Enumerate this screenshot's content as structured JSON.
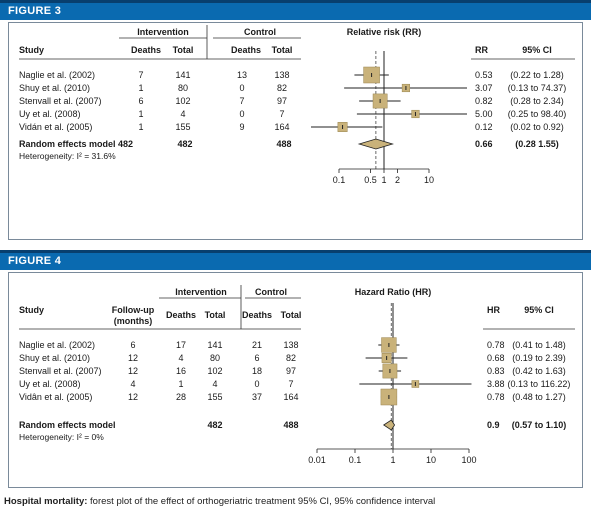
{
  "caption": {
    "bold": "Hospital mortality:",
    "rest": " forest plot of the effect of orthogeriatric treatment 95% CI, 95% confidence interval"
  },
  "chart_data": [
    {
      "type": "forest",
      "figure_label": "FIGURE 3",
      "effect_label": "Relative risk (RR)",
      "group_headers": [
        "Intervention",
        "Control"
      ],
      "columns": [
        "Study",
        "Deaths",
        "Total",
        "Deaths",
        "Total"
      ],
      "estimate_header": "RR",
      "ci_header": "95% CI",
      "scale": "log",
      "xlim": [
        0.1,
        10
      ],
      "ticks": [
        "0.1",
        "0.5",
        "1",
        "2",
        "10"
      ],
      "tick_values": [
        0.1,
        0.5,
        1,
        2,
        10
      ],
      "studies": [
        {
          "name": "Naglie et al. (2002)",
          "i_deaths": "7",
          "i_total": "141",
          "c_deaths": "13",
          "c_total": "138",
          "est": 0.53,
          "lo": 0.22,
          "hi": 1.28,
          "est_text": "0.53",
          "ci_text": "(0.22 to  1.28)",
          "weight": 1.0
        },
        {
          "name": "Shuy et al. (2010)",
          "i_deaths": "1",
          "i_total": "80",
          "c_deaths": "0",
          "c_total": "82",
          "est": 3.07,
          "lo": 0.13,
          "hi": 74.37,
          "est_text": "3.07",
          "ci_text": "(0.13 to 74.37)",
          "weight": 0.3
        },
        {
          "name": "Stenvall et al. (2007)",
          "i_deaths": "6",
          "i_total": "102",
          "c_deaths": "7",
          "c_total": "97",
          "est": 0.82,
          "lo": 0.28,
          "hi": 2.34,
          "est_text": "0.82",
          "ci_text": "(0.28 to  2.34)",
          "weight": 0.85
        },
        {
          "name": "Uy et al. (2008)",
          "i_deaths": "1",
          "i_total": "4",
          "c_deaths": "0",
          "c_total": "7",
          "est": 5.0,
          "lo": 0.25,
          "hi": 98.4,
          "est_text": "5.00",
          "ci_text": "(0.25 to 98.40)",
          "weight": 0.3
        },
        {
          "name": "Vidán et al. (2005)",
          "i_deaths": "1",
          "i_total": "155",
          "c_deaths": "9",
          "c_total": "164",
          "est": 0.12,
          "lo": 0.02,
          "hi": 0.92,
          "est_text": "0.12",
          "ci_text": "(0.02 to  0.92)",
          "weight": 0.45
        }
      ],
      "pooled": {
        "name": "Random effects model 482",
        "i_total": "482",
        "c_total": "488",
        "est": 0.66,
        "lo": 0.28,
        "hi": 1.55,
        "est_text": "0.66",
        "ci_text": "(0.28   1.55)"
      },
      "heterogeneity": "Heterogeneity: I² = 31.6%",
      "colors": {
        "box": "#c9b27a",
        "line": "#222222"
      }
    },
    {
      "type": "forest",
      "figure_label": "FIGURE 4",
      "effect_label": "Hazard Ratio (HR)",
      "group_headers": [
        "Intervention",
        "Control"
      ],
      "columns": [
        "Study",
        "Follow-up",
        "(months)",
        "Deaths",
        "Total",
        "Deaths",
        "Total"
      ],
      "estimate_header": "HR",
      "ci_header": "95% CI",
      "scale": "log",
      "xlim": [
        0.01,
        100
      ],
      "ticks": [
        "0.01",
        "0.1",
        "1",
        "10",
        "100"
      ],
      "tick_values": [
        0.01,
        0.1,
        1,
        10,
        100
      ],
      "studies": [
        {
          "name": "Naglie et al. (2002)",
          "followup": "6",
          "i_deaths": "17",
          "i_total": "141",
          "c_deaths": "21",
          "c_total": "138",
          "est": 0.78,
          "lo": 0.41,
          "hi": 1.48,
          "est_text": "0.78",
          "ci_text": "(0.41 to   1.48)",
          "weight": 0.9
        },
        {
          "name": "Shuy et al. (2010)",
          "followup": "12",
          "i_deaths": "4",
          "i_total": "80",
          "c_deaths": "6",
          "c_total": "82",
          "est": 0.68,
          "lo": 0.19,
          "hi": 2.39,
          "est_text": "0.68",
          "ci_text": "(0.19 to   2.39)",
          "weight": 0.45
        },
        {
          "name": "Stenvall et al. (2007)",
          "followup": "12",
          "i_deaths": "16",
          "i_total": "102",
          "c_deaths": "18",
          "c_total": "97",
          "est": 0.83,
          "lo": 0.42,
          "hi": 1.63,
          "est_text": "0.83",
          "ci_text": "(0.42 to   1.63)",
          "weight": 0.85
        },
        {
          "name": "Uy et al. (2008)",
          "followup": "4",
          "i_deaths": "1",
          "i_total": "4",
          "c_deaths": "0",
          "c_total": "7",
          "est": 3.88,
          "lo": 0.13,
          "hi": 116.22,
          "est_text": "3.88",
          "ci_text": "(0.13 to 116.22)",
          "weight": 0.25
        },
        {
          "name": "Vidân et al. (2005)",
          "followup": "12",
          "i_deaths": "28",
          "i_total": "155",
          "c_deaths": "37",
          "c_total": "164",
          "est": 0.78,
          "lo": 0.48,
          "hi": 1.27,
          "est_text": "0.78",
          "ci_text": "(0.48 to   1.27)",
          "weight": 1.0
        }
      ],
      "pooled": {
        "name": "Random effects model",
        "i_total": "482",
        "c_total": "488",
        "est": 0.9,
        "lo": 0.57,
        "hi": 1.1,
        "est_text": "0.9",
        "ci_text": "(0.57 to  1.10)"
      },
      "heterogeneity": "Heterogeneity: I² = 0%",
      "colors": {
        "box": "#c9b27a",
        "line": "#222222"
      }
    }
  ]
}
